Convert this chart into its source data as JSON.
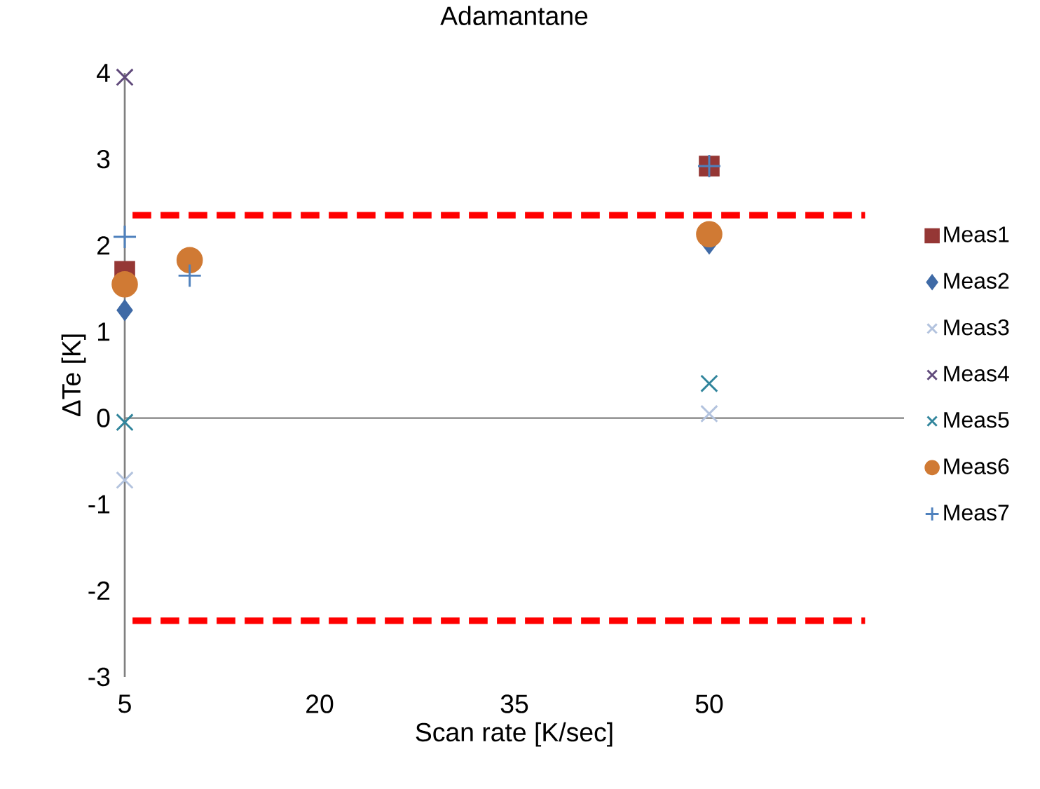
{
  "chart_data": {
    "type": "scatter",
    "title": "Adamantane",
    "xlabel": "Scan rate [K/sec]",
    "ylabel": "ΔTe [K]",
    "xlim": [
      5,
      65
    ],
    "xticks": [
      5,
      20,
      35,
      50
    ],
    "ylim": [
      -3,
      4
    ],
    "yticks": [
      -3,
      -2,
      -1,
      0,
      1,
      2,
      3,
      4
    ],
    "legend": "right",
    "series": [
      {
        "name": "Meas1",
        "color": "#953735",
        "marker": "square",
        "x": [
          5,
          50
        ],
        "values": [
          1.7,
          2.92
        ]
      },
      {
        "name": "Meas2",
        "color": "#3f6aa6",
        "marker": "diamond",
        "x": [
          5,
          50
        ],
        "values": [
          1.25,
          2.02
        ]
      },
      {
        "name": "Meas3",
        "color": "#b3c3de",
        "marker": "cross",
        "x": [
          5,
          50
        ],
        "values": [
          -0.72,
          0.05
        ]
      },
      {
        "name": "Meas4",
        "color": "#604a7b",
        "marker": "cross",
        "x": [
          5
        ],
        "values": [
          3.95
        ]
      },
      {
        "name": "Meas5",
        "color": "#31859c",
        "marker": "cross",
        "x": [
          5,
          50
        ],
        "values": [
          -0.05,
          0.4
        ]
      },
      {
        "name": "Meas6",
        "color": "#d07a34",
        "marker": "circle",
        "x": [
          5,
          10,
          50
        ],
        "values": [
          1.55,
          1.83,
          2.13
        ]
      },
      {
        "name": "Meas7",
        "color": "#4f81bd",
        "marker": "plus",
        "x": [
          5,
          10,
          50
        ],
        "values": [
          2.1,
          1.65,
          2.92
        ]
      }
    ],
    "ref_lines": [
      {
        "axis": "y",
        "value": 2.35,
        "color": "#ff0000",
        "line_style": "dashed"
      },
      {
        "axis": "y",
        "value": -2.35,
        "color": "#ff0000",
        "line_style": "dashed"
      }
    ]
  }
}
